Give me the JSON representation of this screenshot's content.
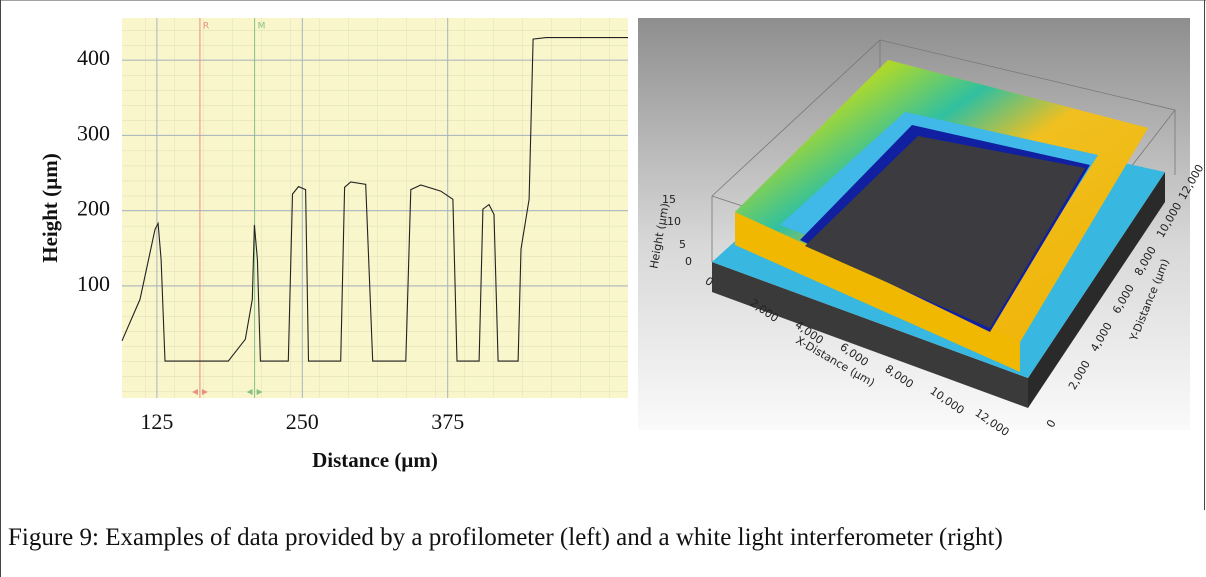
{
  "chart_data": {
    "type": "line",
    "xlabel": "Distance (µm)",
    "ylabel": "Height (µm)",
    "x": [
      95,
      110.5,
      123.4,
      126,
      128.6,
      132,
      186.4,
      201,
      207,
      208.8,
      211.4,
      214,
      238,
      241.6,
      246.7,
      252.8,
      255.3,
      283,
      286.4,
      291.6,
      304.5,
      310.5,
      339,
      343.3,
      351.9,
      369,
      379.5,
      383,
      402,
      405.3,
      410.5,
      414.8,
      418.3,
      435.5,
      438,
      445,
      448.4,
      459.7,
      530
    ],
    "values": [
      27,
      82,
      175,
      183,
      135,
      0,
      0,
      29,
      82,
      181,
      135,
      0,
      0,
      222,
      232,
      228,
      0,
      0,
      231,
      238,
      235,
      0,
      0,
      228,
      234,
      226,
      215,
      0,
      0,
      202,
      208,
      195,
      0,
      0,
      149,
      215,
      428,
      430,
      430
    ],
    "color": "#222222",
    "xlim": [
      95,
      530
    ],
    "ylim": [
      -49,
      456
    ],
    "xticks": [
      125,
      250,
      375
    ],
    "yticks": [
      100,
      200,
      300,
      400
    ],
    "grid": true,
    "markers": [
      {
        "label": "R",
        "x": 162,
        "color": "#e89080"
      },
      {
        "label": "M",
        "x": 209,
        "color": "#88c088"
      }
    ]
  },
  "surface_plot": {
    "height_label": "Height (µm)",
    "height_ticks": [
      "15",
      "10",
      "5",
      "0"
    ],
    "x_label": "X-Distance (µm)",
    "x_ticks": [
      "0",
      "2,000",
      "4,000",
      "6,000",
      "8,000",
      "10,000",
      "12,000"
    ],
    "y_label": "Y-Distance (µm)",
    "y_ticks": [
      "0",
      "2,000",
      "4,000",
      "6,000",
      "8,000",
      "10,000",
      "12,000"
    ]
  },
  "caption": "Figure 9: Examples of data provided by a profilometer (left) and a white light interferometer (right)"
}
